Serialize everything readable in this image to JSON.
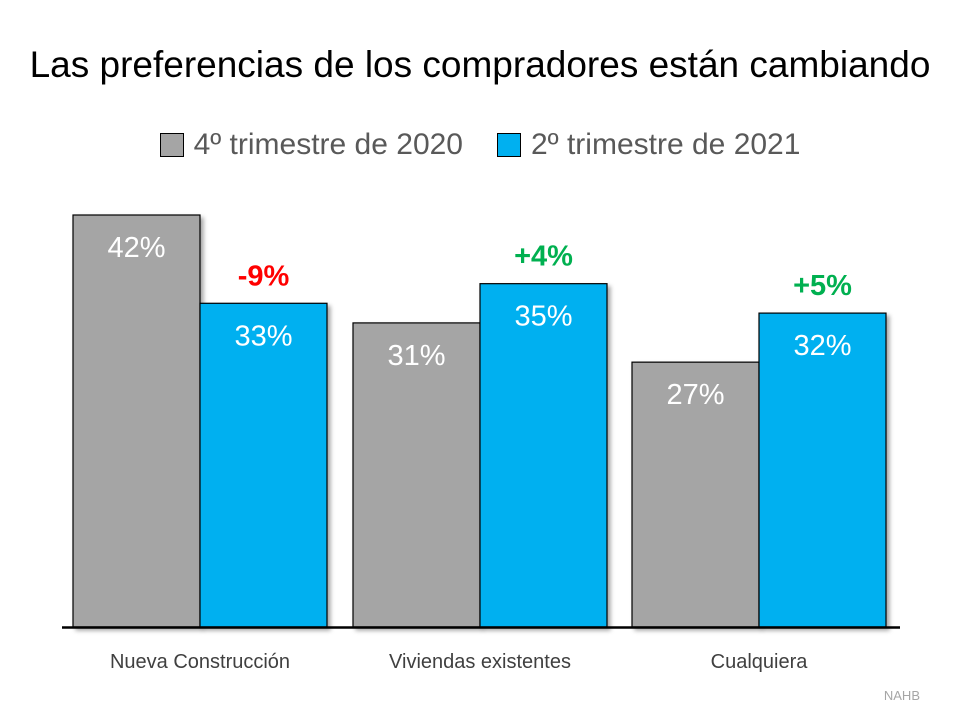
{
  "title": "Las preferencias de los compradores están cambiando",
  "source": "NAHB",
  "chart_data": {
    "type": "bar",
    "title": "Las preferencias de los compradores están cambiando",
    "categories": [
      "Nueva Construcción",
      "Viviendas existentes",
      "Cualquiera"
    ],
    "series": [
      {
        "name": "4º trimestre de 2020",
        "values": [
          42,
          31,
          27
        ],
        "labels": [
          "42%",
          "31%",
          "27%"
        ],
        "color": "#a5a5a5"
      },
      {
        "name": "2º trimestre de 2021",
        "values": [
          33,
          35,
          32
        ],
        "labels": [
          "33%",
          "35%",
          "32%"
        ],
        "color": "#00b0f0"
      }
    ],
    "changes": [
      {
        "label": "-9%",
        "color": "#ff0000"
      },
      {
        "label": "+4%",
        "color": "#00b050"
      },
      {
        "label": "+5%",
        "color": "#00b050"
      }
    ],
    "ylim": [
      0,
      42
    ],
    "grid": false,
    "legend": "top"
  }
}
